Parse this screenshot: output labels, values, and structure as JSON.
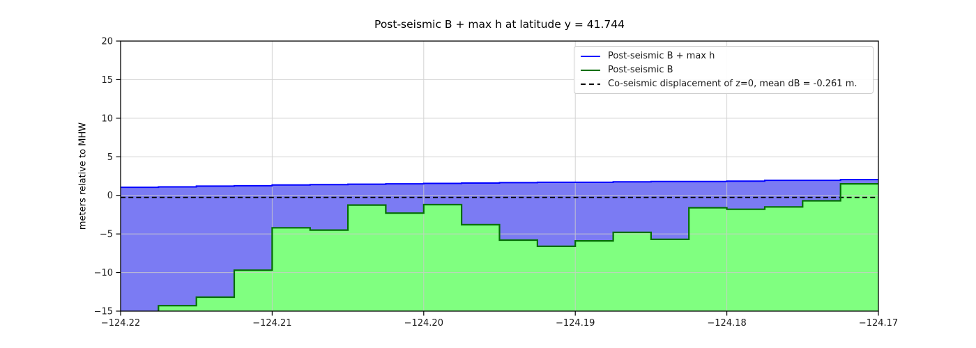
{
  "figure": {
    "title": "Post-seismic B + max h at latitude y = 41.744",
    "ylabel": "meters relative to MHW"
  },
  "chart_data": {
    "type": "area",
    "title": "Post-seismic B + max h at latitude y = 41.744",
    "xlabel": "",
    "ylabel": "meters relative to MHW",
    "xlim": [
      -124.22,
      -124.17
    ],
    "ylim": [
      -15,
      20
    ],
    "grid": true,
    "grid_color": "#cccccc",
    "legend_position": "upper right",
    "xticks": {
      "values": [
        -124.22,
        -124.21,
        -124.2,
        -124.19,
        -124.18,
        -124.17
      ],
      "labels": [
        "−124.22",
        "−124.21",
        "−124.20",
        "−124.19",
        "−124.18",
        "−124.17"
      ]
    },
    "yticks": {
      "values": [
        -15,
        -10,
        -5,
        0,
        5,
        10,
        15,
        20
      ],
      "labels": [
        "−15",
        "−10",
        "−5",
        "0",
        "5",
        "10",
        "15",
        "20"
      ]
    },
    "x_step_edges": [
      -124.22,
      -124.2175,
      -124.215,
      -124.2125,
      -124.21,
      -124.2075,
      -124.205,
      -124.2025,
      -124.2,
      -124.1975,
      -124.195,
      -124.1925,
      -124.19,
      -124.1875,
      -124.185,
      -124.1825,
      -124.18,
      -124.1775,
      -124.175,
      -124.1725,
      -124.17
    ],
    "series": [
      {
        "name": "Post-seismic B + max h",
        "style": "step-line",
        "color": "#0000ff",
        "fill_below_to_next": "#7b7bf3",
        "values": [
          1.05,
          1.1,
          1.2,
          1.25,
          1.35,
          1.4,
          1.45,
          1.5,
          1.55,
          1.6,
          1.65,
          1.7,
          1.7,
          1.75,
          1.8,
          1.8,
          1.85,
          1.95,
          1.95,
          2.05
        ]
      },
      {
        "name": "Post-seismic B",
        "style": "step-line",
        "color": "#046e04",
        "fill_below": "#80ff80",
        "values": [
          -15.5,
          -14.3,
          -13.2,
          -9.7,
          -4.2,
          -4.5,
          -1.25,
          -2.3,
          -1.2,
          -3.8,
          -5.8,
          -6.6,
          -5.9,
          -4.8,
          -5.7,
          -1.6,
          -1.8,
          -1.5,
          -0.7,
          1.5
        ]
      }
    ],
    "reference_line": {
      "label": "Co-seismic displacement of z=0, mean dB = -0.261 m.",
      "y": -0.261,
      "style": "dashed",
      "color": "#000000"
    }
  }
}
